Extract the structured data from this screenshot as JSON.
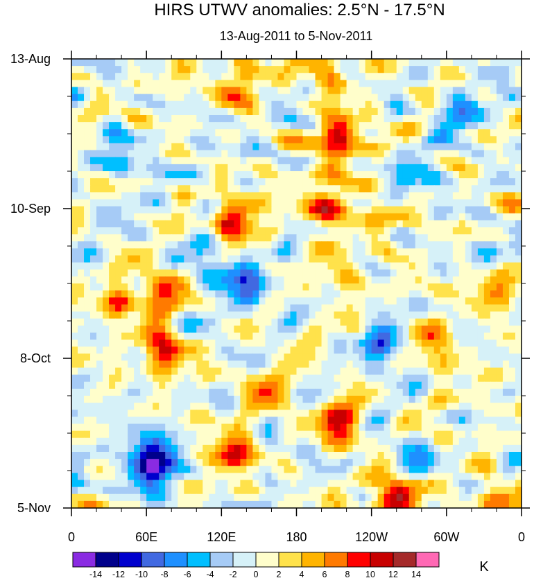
{
  "chart_data": {
    "type": "heatmap",
    "title": "HIRS UTWV anomalies: 2.5°N - 17.5°N",
    "subtitle": "13-Aug-2011 to 5-Nov-2011",
    "xlabel": "",
    "ylabel": "",
    "x_ticks": [
      "0",
      "60E",
      "120E",
      "180",
      "120W",
      "60W",
      "0"
    ],
    "x_range_deg": [
      0,
      360
    ],
    "y_ticks": [
      "13-Aug",
      "10-Sep",
      "8-Oct",
      "5-Nov"
    ],
    "y_range_days": [
      0,
      84
    ],
    "colorbar": {
      "unit": "K",
      "labels": [
        "-14",
        "-12",
        "-10",
        "-8",
        "-6",
        "-4",
        "-2",
        "0",
        "2",
        "4",
        "6",
        "8",
        "10",
        "12",
        "14"
      ],
      "colors": [
        "#8a2be2",
        "#00008b",
        "#0000cd",
        "#4169e1",
        "#1e90ff",
        "#00bfff",
        "#a6cbf6",
        "#d6f1f8",
        "#fffecb",
        "#ffe24b",
        "#ffb400",
        "#ff7a00",
        "#ff0000",
        "#c80000",
        "#a52a2a",
        "#ff69b4"
      ]
    },
    "features": [
      {
        "lon": 135,
        "day": 5,
        "value": 8
      },
      {
        "lon": 200,
        "day": 2,
        "value": 8
      },
      {
        "lon": 215,
        "day": 15,
        "value": 12
      },
      {
        "lon": 205,
        "day": 27,
        "value": 10
      },
      {
        "lon": 132,
        "day": 30,
        "value": 10
      },
      {
        "lon": 240,
        "day": 31,
        "value": 8
      },
      {
        "lon": 215,
        "day": 38,
        "value": 8
      },
      {
        "lon": 75,
        "day": 55,
        "value": 12
      },
      {
        "lon": 72,
        "day": 44,
        "value": 8
      },
      {
        "lon": 40,
        "day": 45,
        "value": 6
      },
      {
        "lon": 215,
        "day": 68,
        "value": 12
      },
      {
        "lon": 260,
        "day": 82,
        "value": 14
      },
      {
        "lon": 130,
        "day": 74,
        "value": 10
      },
      {
        "lon": 335,
        "day": 42,
        "value": 10
      },
      {
        "lon": 340,
        "day": 83,
        "value": 10
      },
      {
        "lon": 160,
        "day": 62,
        "value": 6
      },
      {
        "lon": 290,
        "day": 53,
        "value": 8
      },
      {
        "lon": 60,
        "day": 77,
        "value": -12
      },
      {
        "lon": 70,
        "day": 74,
        "value": -10
      },
      {
        "lon": 40,
        "day": 18,
        "value": -6
      },
      {
        "lon": 250,
        "day": 53,
        "value": -8
      },
      {
        "lon": 110,
        "day": 38,
        "value": -6
      },
      {
        "lon": 140,
        "day": 42,
        "value": -8
      },
      {
        "lon": 310,
        "day": 10,
        "value": -6
      },
      {
        "lon": 230,
        "day": 35,
        "value": -6
      },
      {
        "lon": 270,
        "day": 75,
        "value": -6
      },
      {
        "lon": 330,
        "day": 37,
        "value": -6
      },
      {
        "lon": 280,
        "day": 22,
        "value": -4
      }
    ]
  }
}
